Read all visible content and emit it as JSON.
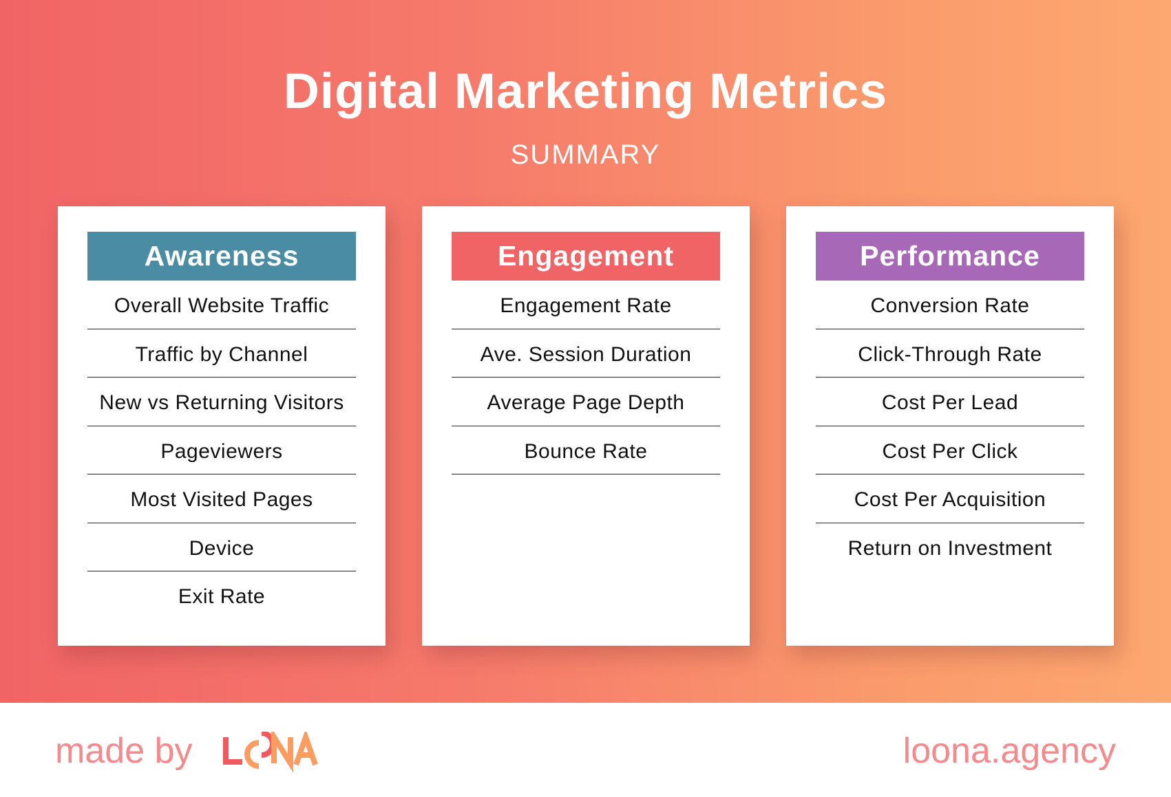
{
  "title": "Digital Marketing Metrics",
  "subtitle": "SUMMARY",
  "colors": {
    "gradient_start": "#f16466",
    "gradient_end": "#fda870",
    "awareness": "#4a8ca3",
    "engagement": "#f16466",
    "performance": "#a868b8"
  },
  "cards": [
    {
      "header": "Awareness",
      "color": "#4a8ca3",
      "items": [
        "Overall Website Traffic",
        "Traffic by Channel",
        "New vs Returning Visitors",
        "Pageviewers",
        "Most Visited Pages",
        "Device",
        "Exit Rate"
      ]
    },
    {
      "header": "Engagement",
      "color": "#f16466",
      "items": [
        "Engagement Rate",
        "Ave. Session Duration",
        "Average Page Depth",
        "Bounce Rate"
      ]
    },
    {
      "header": "Performance",
      "color": "#a868b8",
      "items": [
        "Conversion Rate",
        "Click-Through Rate",
        "Cost Per Lead",
        "Cost Per Click",
        "Cost Per Acquisition",
        "Return on Investment"
      ]
    }
  ],
  "footer": {
    "made_by": "made by",
    "logo": "LOONA",
    "site": "loona.agency"
  }
}
